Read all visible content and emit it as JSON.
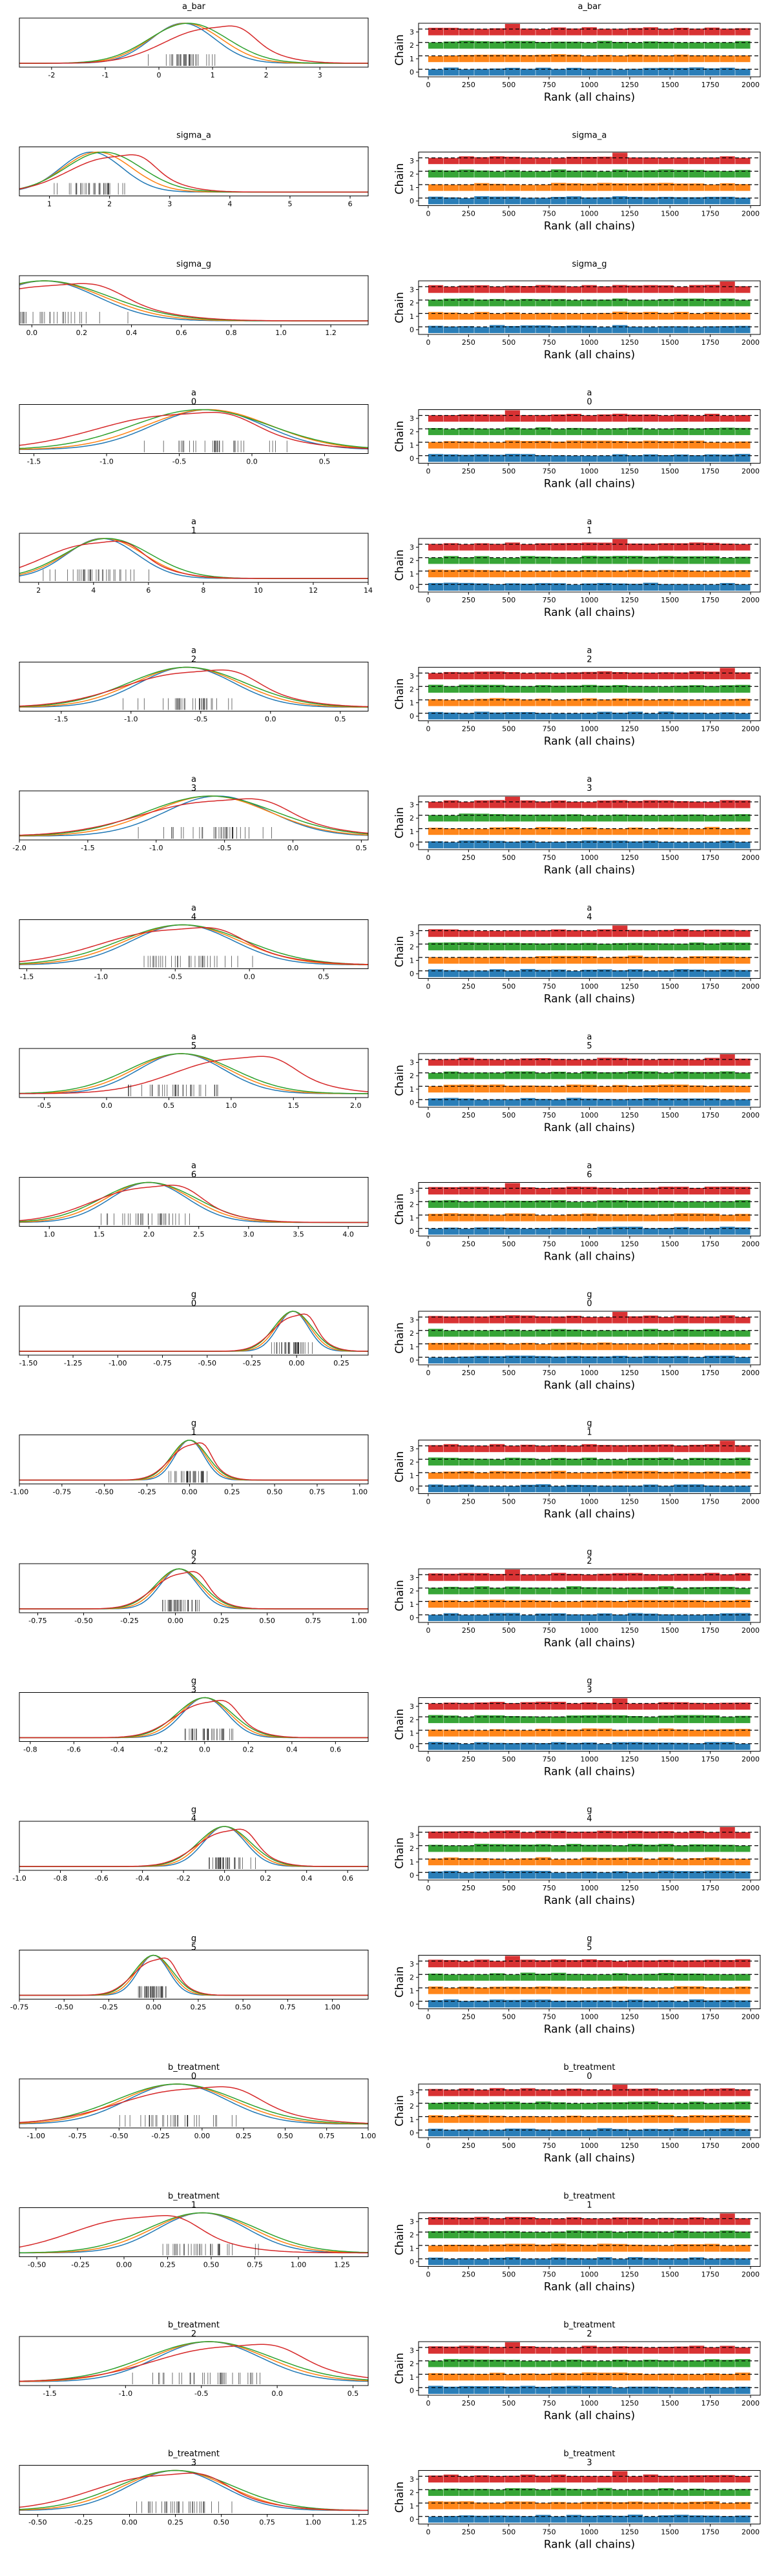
{
  "chart_data": {
    "type": "trace_rank",
    "chain_colors": [
      "#1f77b4",
      "#ff7f0e",
      "#2ca02c",
      "#d62728"
    ],
    "rank_panel": {
      "ylabel": "Chain",
      "xlabel": "Rank (all chains)",
      "xticks": [
        "0",
        "250",
        "500",
        "750",
        "1000",
        "1250",
        "1500",
        "1750",
        "2000"
      ],
      "yticks": [
        "0",
        "1",
        "2",
        "3"
      ],
      "xlim": [
        -60,
        2060
      ],
      "ylim": [
        0,
        4
      ]
    },
    "panels": [
      {
        "title_lines": [
          "a_bar"
        ],
        "xlim": [
          -2.6,
          3.9
        ],
        "xticks": [
          "-2",
          "-1",
          "0",
          "1",
          "2",
          "3"
        ],
        "xtick_values": [
          -2,
          -1,
          0,
          1,
          2,
          3
        ],
        "peaks": [
          0.45,
          0.5,
          0.55,
          0.9
        ],
        "spread": 0.7
      },
      {
        "title_lines": [
          "sigma_a"
        ],
        "xlim": [
          0.5,
          6.3
        ],
        "xticks": [
          "1",
          "2",
          "3",
          "4",
          "5",
          "6"
        ],
        "xtick_values": [
          1,
          2,
          3,
          4,
          5,
          6
        ],
        "peaks": [
          1.7,
          1.8,
          1.9,
          2.0
        ],
        "spread": 0.6
      },
      {
        "title_lines": [
          "sigma_g"
        ],
        "xlim": [
          -0.05,
          1.35
        ],
        "xticks": [
          "0.0",
          "0.2",
          "0.4",
          "0.6",
          "0.8",
          "1.0",
          "1.2"
        ],
        "xtick_values": [
          0,
          0.2,
          0.4,
          0.6,
          0.8,
          1.0,
          1.2
        ],
        "peaks": [
          0.05,
          0.05,
          0.05,
          0.05
        ],
        "spread": 0.25
      },
      {
        "title_lines": [
          "a",
          "0"
        ],
        "xlim": [
          -1.6,
          0.8
        ],
        "xticks": [
          "-1.5",
          "-1.0",
          "-0.5",
          "0.0",
          "0.5"
        ],
        "xtick_values": [
          -1.5,
          -1.0,
          -0.5,
          0.0,
          0.5
        ],
        "peaks": [
          -0.3,
          -0.3,
          -0.35,
          -0.55
        ],
        "spread": 0.45
      },
      {
        "title_lines": [
          "a",
          "1"
        ],
        "xlim": [
          1.3,
          14.0
        ],
        "xticks": [
          "2",
          "4",
          "6",
          "8",
          "10",
          "12",
          "14"
        ],
        "xtick_values": [
          2,
          4,
          6,
          8,
          10,
          12,
          14
        ],
        "peaks": [
          4.3,
          4.4,
          4.5,
          3.9
        ],
        "spread": 1.5
      },
      {
        "title_lines": [
          "a",
          "2"
        ],
        "xlim": [
          -1.8,
          0.7
        ],
        "xticks": [
          "-1.5",
          "-1.0",
          "-0.5",
          "0.0",
          "0.5"
        ],
        "xtick_values": [
          -1.5,
          -1.0,
          -0.5,
          0.0,
          0.5
        ],
        "peaks": [
          -0.6,
          -0.6,
          -0.6,
          -0.6
        ],
        "spread": 0.4
      },
      {
        "title_lines": [
          "a",
          "3"
        ],
        "xlim": [
          -2.0,
          0.55
        ],
        "xticks": [
          "-2.0",
          "-1.5",
          "-1.0",
          "-0.5",
          "0.0",
          "0.5"
        ],
        "xtick_values": [
          -2.0,
          -1.5,
          -1.0,
          -0.5,
          0.0,
          0.5
        ],
        "peaks": [
          -0.55,
          -0.6,
          -0.6,
          -0.6
        ],
        "spread": 0.45
      },
      {
        "title_lines": [
          "a",
          "4"
        ],
        "xlim": [
          -1.55,
          0.8
        ],
        "xticks": [
          "-1.5",
          "-1.0",
          "-0.5",
          "0.0",
          "0.5"
        ],
        "xtick_values": [
          -1.5,
          -1.0,
          -0.5,
          0.0,
          0.5
        ],
        "peaks": [
          -0.45,
          -0.45,
          -0.45,
          -0.55
        ],
        "spread": 0.4
      },
      {
        "title_lines": [
          "a",
          "5"
        ],
        "xlim": [
          -0.7,
          2.1
        ],
        "xticks": [
          "-0.5",
          "0.0",
          "0.5",
          "1.0",
          "1.5",
          "2.0"
        ],
        "xtick_values": [
          -0.5,
          0.0,
          0.5,
          1.0,
          1.5,
          2.0
        ],
        "peaks": [
          0.6,
          0.6,
          0.6,
          1.0
        ],
        "spread": 0.4
      },
      {
        "title_lines": [
          "a",
          "6"
        ],
        "xlim": [
          0.7,
          4.2
        ],
        "xticks": [
          "1.0",
          "1.5",
          "2.0",
          "2.5",
          "3.0",
          "3.5",
          "4.0"
        ],
        "xtick_values": [
          1.0,
          1.5,
          2.0,
          2.5,
          3.0,
          3.5,
          4.0
        ],
        "peaks": [
          2.0,
          2.0,
          2.0,
          1.95
        ],
        "spread": 0.45
      },
      {
        "title_lines": [
          "g",
          "0"
        ],
        "xlim": [
          -1.55,
          0.4
        ],
        "xticks": [
          "-1.50",
          "-1.25",
          "-1.00",
          "-0.75",
          "-0.50",
          "-0.25",
          "0.00",
          "0.25"
        ],
        "xtick_values": [
          -1.5,
          -1.25,
          -1.0,
          -0.75,
          -0.5,
          -0.25,
          0.0,
          0.25
        ],
        "peaks": [
          -0.02,
          -0.02,
          -0.02,
          -0.02
        ],
        "spread": 0.1
      },
      {
        "title_lines": [
          "g",
          "1"
        ],
        "xlim": [
          -1.0,
          1.05
        ],
        "xticks": [
          "-1.00",
          "-0.75",
          "-0.50",
          "-0.25",
          "0.00",
          "0.25",
          "0.50",
          "0.75",
          "1.00"
        ],
        "xtick_values": [
          -1.0,
          -0.75,
          -0.5,
          -0.25,
          0.0,
          0.25,
          0.5,
          0.75,
          1.0
        ],
        "peaks": [
          0.0,
          0.0,
          0.0,
          0.0
        ],
        "spread": 0.1
      },
      {
        "title_lines": [
          "g",
          "2"
        ],
        "xlim": [
          -0.85,
          1.05
        ],
        "xticks": [
          "-0.75",
          "-0.50",
          "-0.25",
          "0.00",
          "0.25",
          "0.50",
          "0.75",
          "1.00"
        ],
        "xtick_values": [
          -0.75,
          -0.5,
          -0.25,
          0.0,
          0.25,
          0.5,
          0.75,
          1.0
        ],
        "peaks": [
          0.02,
          0.02,
          0.02,
          0.02
        ],
        "spread": 0.12
      },
      {
        "title_lines": [
          "g",
          "3"
        ],
        "xlim": [
          -0.85,
          0.75
        ],
        "xticks": [
          "-0.8",
          "-0.6",
          "-0.4",
          "-0.2",
          "0.0",
          "0.2",
          "0.4",
          "0.6"
        ],
        "xtick_values": [
          -0.8,
          -0.6,
          -0.4,
          -0.2,
          0.0,
          0.2,
          0.4,
          0.6
        ],
        "peaks": [
          0.0,
          0.0,
          0.0,
          0.0
        ],
        "spread": 0.12
      },
      {
        "title_lines": [
          "g",
          "4"
        ],
        "xlim": [
          -1.0,
          0.7
        ],
        "xticks": [
          "-1.0",
          "-0.8",
          "-0.6",
          "-0.4",
          "-0.2",
          "0.0",
          "0.2",
          "0.4",
          "0.6"
        ],
        "xtick_values": [
          -1.0,
          -0.8,
          -0.6,
          -0.4,
          -0.2,
          0.0,
          0.2,
          0.4,
          0.6
        ],
        "peaks": [
          0.0,
          0.0,
          0.0,
          0.0
        ],
        "spread": 0.12
      },
      {
        "title_lines": [
          "g",
          "5"
        ],
        "xlim": [
          -0.75,
          1.2
        ],
        "xticks": [
          "-0.75",
          "-0.50",
          "-0.25",
          "0.00",
          "0.25",
          "0.50",
          "0.75",
          "1.00"
        ],
        "xtick_values": [
          -0.75,
          -0.5,
          -0.25,
          0.0,
          0.25,
          0.5,
          0.75,
          1.0
        ],
        "peaks": [
          0.0,
          0.0,
          0.0,
          0.0
        ],
        "spread": 0.1
      },
      {
        "title_lines": [
          "b_treatment",
          "0"
        ],
        "xlim": [
          -1.1,
          1.0
        ],
        "xticks": [
          "-1.00",
          "-0.75",
          "-0.50",
          "-0.25",
          "0.00",
          "0.25",
          "0.50",
          "0.75",
          "1.00"
        ],
        "xtick_values": [
          -1.0,
          -0.75,
          -0.5,
          -0.25,
          0.0,
          0.25,
          0.5,
          0.75,
          1.0
        ],
        "peaks": [
          -0.15,
          -0.15,
          -0.15,
          -0.1
        ],
        "spread": 0.35
      },
      {
        "title_lines": [
          "b_treatment",
          "1"
        ],
        "xlim": [
          -0.6,
          1.4
        ],
        "xticks": [
          "-0.50",
          "-0.25",
          "0.00",
          "0.25",
          "0.50",
          "0.75",
          "1.00",
          "1.25"
        ],
        "xtick_values": [
          -0.5,
          -0.25,
          0.0,
          0.25,
          0.5,
          0.75,
          1.0,
          1.25
        ],
        "peaks": [
          0.45,
          0.45,
          0.45,
          0.05
        ],
        "spread": 0.3
      },
      {
        "title_lines": [
          "b_treatment",
          "2"
        ],
        "xlim": [
          -1.7,
          0.6
        ],
        "xticks": [
          "-1.5",
          "-1.0",
          "-0.5",
          "0.0",
          "0.5"
        ],
        "xtick_values": [
          -1.5,
          -1.0,
          -0.5,
          0.0,
          0.5
        ],
        "peaks": [
          -0.45,
          -0.45,
          -0.45,
          -0.35
        ],
        "spread": 0.4
      },
      {
        "title_lines": [
          "b_treatment",
          "3"
        ],
        "xlim": [
          -0.6,
          1.3
        ],
        "xticks": [
          "-0.50",
          "-0.25",
          "0.00",
          "0.25",
          "0.50",
          "0.75",
          "1.00",
          "1.25"
        ],
        "xtick_values": [
          -0.5,
          -0.25,
          0.0,
          0.25,
          0.5,
          0.75,
          1.0,
          1.25
        ],
        "peaks": [
          0.25,
          0.25,
          0.25,
          0.15
        ],
        "spread": 0.3
      }
    ]
  }
}
